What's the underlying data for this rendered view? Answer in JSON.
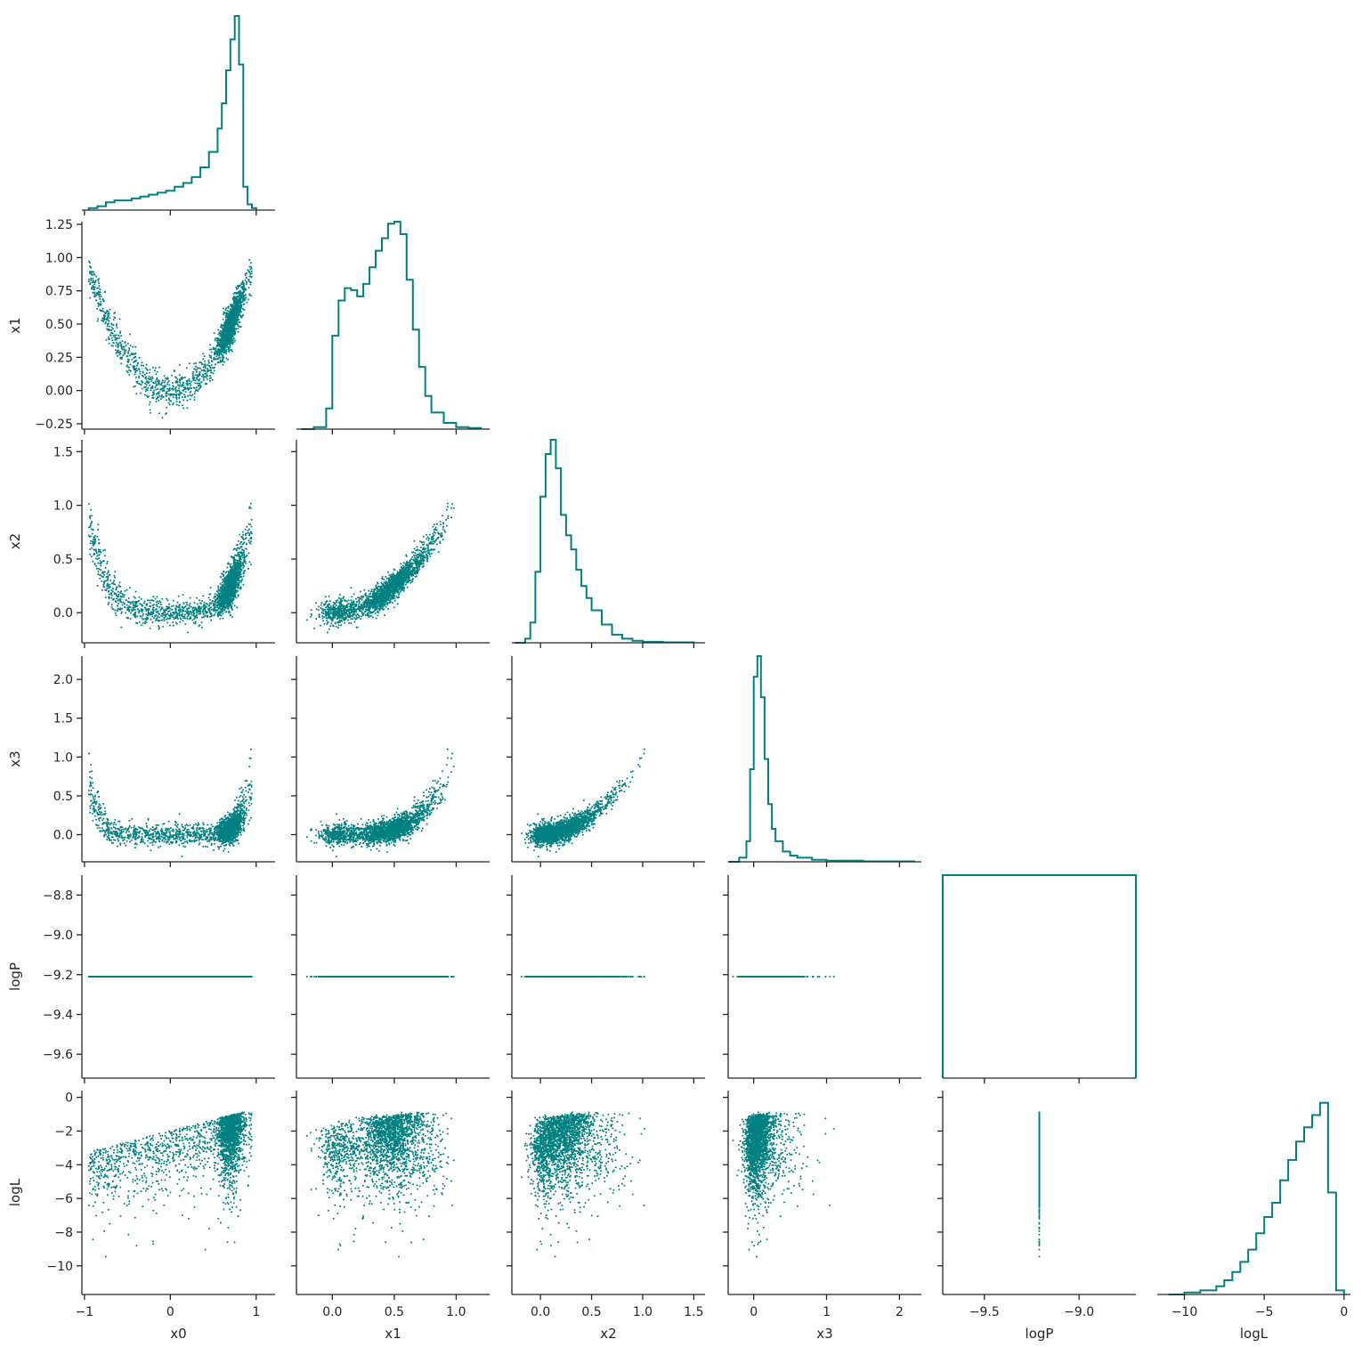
{
  "chart_data": {
    "type": "corner",
    "color": "#008080",
    "variables": [
      "x0",
      "x1",
      "x2",
      "x3",
      "logP",
      "logL"
    ],
    "axis_labels": {
      "x": [
        "x0",
        "x1",
        "x2",
        "x3",
        "logP",
        "logL"
      ],
      "y": [
        "",
        "x1",
        "x2",
        "x3",
        "logP",
        "logL"
      ]
    },
    "ranges": {
      "x0": [
        -1.03,
        1.22
      ],
      "x1": [
        -0.29,
        1.27
      ],
      "x2": [
        -0.28,
        1.61
      ],
      "x3": [
        -0.35,
        2.3
      ],
      "logP": [
        -9.72,
        -8.7
      ],
      "logL": [
        -11.7,
        0.4
      ]
    },
    "ticks": {
      "x0": {
        "values": [
          -1,
          0,
          1
        ],
        "labels": [
          "−1",
          "0",
          "1"
        ]
      },
      "x1": {
        "values": [
          -0.25,
          0.0,
          0.25,
          0.5,
          0.75,
          1.0,
          1.25
        ],
        "labels": [
          "−0.25",
          "0.00",
          "0.25",
          "0.50",
          "0.75",
          "1.00",
          "1.25"
        ]
      },
      "x1_bottom": {
        "values": [
          0.0,
          0.5,
          1.0
        ],
        "labels": [
          "0.0",
          "0.5",
          "1.0"
        ]
      },
      "x2": {
        "values": [
          0.0,
          0.5,
          1.0,
          1.5
        ],
        "labels": [
          "0.0",
          "0.5",
          "1.0",
          "1.5"
        ]
      },
      "x3": {
        "values": [
          0.0,
          0.5,
          1.0,
          1.5,
          2.0
        ],
        "labels": [
          "0.0",
          "0.5",
          "1.0",
          "1.5",
          "2.0"
        ]
      },
      "x3_bottom": {
        "values": [
          0,
          1,
          2
        ],
        "labels": [
          "0",
          "1",
          "2"
        ]
      },
      "logP": {
        "values": [
          -9.6,
          -9.4,
          -9.2,
          -9.0,
          -8.8
        ],
        "labels": [
          "−9.6",
          "−9.4",
          "−9.2",
          "−9.0",
          "−8.8"
        ]
      },
      "logP_bottom": {
        "values": [
          -9.5,
          -9.0
        ],
        "labels": [
          "−9.5",
          "−9.0"
        ]
      },
      "logL": {
        "values": [
          -10,
          -8,
          -6,
          -4,
          -2,
          0
        ],
        "labels": [
          "−10",
          "−8",
          "−6",
          "−4",
          "−2",
          "0"
        ]
      },
      "logL_bottom": {
        "values": [
          -10,
          -5,
          0
        ],
        "labels": [
          "−10",
          "−5",
          "0"
        ]
      }
    },
    "marginals": {
      "x0": {
        "x": [
          -0.95,
          -0.85,
          -0.75,
          -0.65,
          -0.55,
          -0.45,
          -0.35,
          -0.25,
          -0.15,
          -0.05,
          0.05,
          0.15,
          0.25,
          0.35,
          0.45,
          0.55,
          0.6,
          0.65,
          0.7,
          0.75,
          0.8,
          0.85,
          0.9,
          0.95,
          1.0
        ],
        "density": [
          0.01,
          0.02,
          0.04,
          0.05,
          0.05,
          0.06,
          0.07,
          0.08,
          0.09,
          0.1,
          0.12,
          0.14,
          0.17,
          0.22,
          0.3,
          0.42,
          0.55,
          0.72,
          0.88,
          1.0,
          0.75,
          0.12,
          0.03,
          0.01,
          0.0
        ]
      },
      "x1": {
        "x": [
          -0.25,
          -0.15,
          -0.05,
          0.0,
          0.05,
          0.1,
          0.15,
          0.2,
          0.25,
          0.3,
          0.35,
          0.4,
          0.45,
          0.5,
          0.55,
          0.6,
          0.65,
          0.7,
          0.75,
          0.8,
          0.9,
          1.0,
          1.1,
          1.2
        ],
        "density": [
          0.0,
          0.01,
          0.1,
          0.45,
          0.62,
          0.68,
          0.67,
          0.64,
          0.7,
          0.78,
          0.86,
          0.92,
          0.99,
          1.0,
          0.94,
          0.72,
          0.48,
          0.3,
          0.16,
          0.08,
          0.03,
          0.01,
          0.005,
          0.0
        ]
      },
      "x2": {
        "x": [
          -0.25,
          -0.15,
          -0.1,
          -0.05,
          0.0,
          0.05,
          0.1,
          0.15,
          0.2,
          0.25,
          0.3,
          0.35,
          0.4,
          0.45,
          0.5,
          0.6,
          0.7,
          0.8,
          0.9,
          1.0,
          1.2,
          1.5
        ],
        "density": [
          0.0,
          0.02,
          0.1,
          0.35,
          0.72,
          0.93,
          1.0,
          0.86,
          0.63,
          0.53,
          0.46,
          0.36,
          0.28,
          0.22,
          0.16,
          0.09,
          0.04,
          0.02,
          0.01,
          0.005,
          0.002,
          0.0
        ]
      },
      "x3": {
        "x": [
          -0.35,
          -0.2,
          -0.1,
          -0.05,
          0.0,
          0.05,
          0.1,
          0.15,
          0.2,
          0.25,
          0.3,
          0.4,
          0.5,
          0.6,
          0.8,
          1.0,
          1.5,
          2.2
        ],
        "density": [
          0.0,
          0.02,
          0.1,
          0.45,
          0.9,
          1.0,
          0.8,
          0.5,
          0.28,
          0.16,
          0.1,
          0.05,
          0.03,
          0.02,
          0.01,
          0.005,
          0.002,
          0.0
        ]
      },
      "logP": {
        "x": [
          -9.72,
          -9.2,
          -8.7
        ],
        "density": [
          1.0,
          1.0,
          0.0
        ]
      },
      "logL": {
        "x": [
          -11.0,
          -10.0,
          -9.0,
          -8.0,
          -7.5,
          -7.0,
          -6.5,
          -6.0,
          -5.5,
          -5.0,
          -4.5,
          -4.0,
          -3.5,
          -3.0,
          -2.5,
          -2.0,
          -1.5,
          -1.0,
          -0.5,
          0.0
        ],
        "density": [
          0.0,
          0.01,
          0.02,
          0.04,
          0.07,
          0.11,
          0.16,
          0.22,
          0.3,
          0.38,
          0.45,
          0.56,
          0.66,
          0.75,
          0.82,
          0.88,
          0.94,
          0.5,
          0.02,
          0.0
        ]
      }
    },
    "scatter_summary": {
      "logP_constant_value": -9.21,
      "x1_vs_x0_trend": "parabola, x1 ≈ x0²",
      "x2_vs_x1_trend": "parabola, x2 ≈ x1²",
      "x3_vs_x2_trend": "parabola, x3 ≈ x2²",
      "logL_range": [
        -11.2,
        -0.6
      ]
    }
  }
}
